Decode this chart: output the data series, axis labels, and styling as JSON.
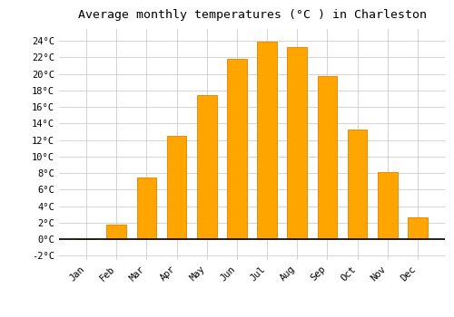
{
  "months": [
    "Jan",
    "Feb",
    "Mar",
    "Apr",
    "May",
    "Jun",
    "Jul",
    "Aug",
    "Sep",
    "Oct",
    "Nov",
    "Dec"
  ],
  "temperatures": [
    0.0,
    1.8,
    7.5,
    12.5,
    17.5,
    21.8,
    23.9,
    23.3,
    19.7,
    13.3,
    8.1,
    2.7
  ],
  "bar_color": "#FFA500",
  "bar_edge_color": "#E08000",
  "title": "Average monthly temperatures (°C ) in Charleston",
  "ylim": [
    -2.5,
    25.5
  ],
  "yticks": [
    -2,
    0,
    2,
    4,
    6,
    8,
    10,
    12,
    14,
    16,
    18,
    20,
    22,
    24
  ],
  "ytick_labels": [
    "-2°C",
    "0°C",
    "2°C",
    "4°C",
    "6°C",
    "8°C",
    "10°C",
    "12°C",
    "14°C",
    "16°C",
    "18°C",
    "20°C",
    "22°C",
    "24°C"
  ],
  "background_color": "#FFFFFF",
  "plot_bg_color": "#FFFFFF",
  "title_fontsize": 9.5,
  "tick_fontsize": 7.5,
  "grid_color": "#CCCCCC",
  "zero_line_color": "#000000"
}
